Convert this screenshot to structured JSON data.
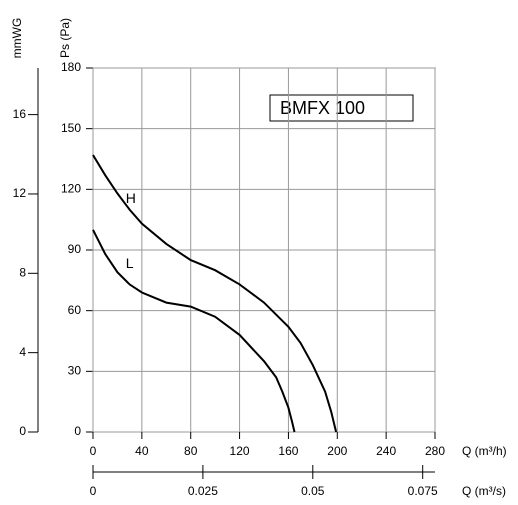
{
  "chart_data": {
    "type": "line",
    "xlabel": "Q (m³/h)",
    "ylabel": "Ps (Pa)",
    "y2label": "mmWG",
    "x2label": "Q (m³/s)",
    "annotations": [
      "BMFX 100",
      "H",
      "L"
    ],
    "xlim": [
      0,
      280
    ],
    "xticks": [
      0,
      40,
      80,
      120,
      160,
      200,
      240,
      280
    ],
    "ylim": [
      0,
      180
    ],
    "yticks": [
      0,
      30,
      60,
      90,
      120,
      150,
      180
    ],
    "y2lim": [
      0,
      18.35
    ],
    "y2ticks": [
      0,
      4,
      8,
      12,
      16
    ],
    "x2lim": [
      0,
      0.0778
    ],
    "x2ticks": [
      0,
      0.025,
      0.05,
      0.075
    ],
    "grid": true,
    "series": [
      {
        "name": "H",
        "color": "#000000",
        "x": [
          0,
          10,
          20,
          30,
          40,
          60,
          80,
          100,
          120,
          140,
          160,
          170,
          180,
          190,
          195,
          199
        ],
        "values": [
          137,
          127,
          118,
          110,
          103,
          93,
          85,
          80,
          73,
          64,
          52,
          44,
          33,
          20,
          10,
          0
        ]
      },
      {
        "name": "L",
        "color": "#000000",
        "x": [
          0,
          10,
          20,
          30,
          40,
          60,
          80,
          100,
          120,
          140,
          150,
          155,
          160,
          163,
          165
        ],
        "values": [
          100,
          88,
          79,
          73,
          69,
          64,
          62,
          57,
          48,
          35,
          27,
          20,
          12,
          5,
          0
        ]
      }
    ]
  }
}
